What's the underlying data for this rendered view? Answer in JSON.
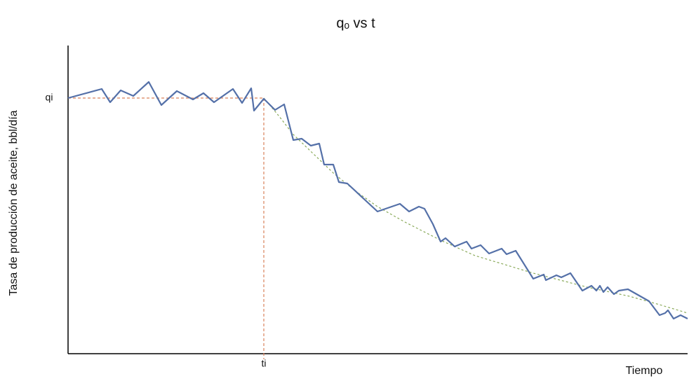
{
  "chart_data": {
    "type": "line",
    "title": "qₒ vs t",
    "x_label": "Tiempo",
    "y_label": "Tasa de producción de aceite, bbl/día",
    "xlim": [
      0,
      883
    ],
    "ylim": [
      0,
      440
    ],
    "xticks": [
      {
        "value": 279,
        "label": "ti"
      }
    ],
    "yticks": [
      {
        "value": 365,
        "label": "qi"
      }
    ],
    "series": [
      {
        "color": "#5470a8",
        "style": "solid",
        "x": [
          0,
          48,
          60,
          75,
          93,
          115,
          133,
          155,
          178,
          193,
          208,
          235,
          248,
          261,
          265,
          279,
          295,
          308,
          321,
          333,
          346,
          358,
          365,
          378,
          386,
          398,
          441,
          473,
          486,
          500,
          508,
          520,
          531,
          538,
          551,
          568,
          575,
          588,
          600,
          618,
          625,
          638,
          663,
          678,
          681,
          696,
          703,
          716,
          733,
          746,
          753,
          758,
          763,
          769,
          778,
          785,
          798,
          828,
          843,
          851,
          855,
          863,
          873,
          883
        ],
        "values": [
          365,
          378,
          359,
          376,
          368,
          388,
          355,
          375,
          363,
          372,
          359,
          378,
          358,
          379,
          347,
          364,
          348,
          356,
          305,
          307,
          297,
          300,
          270,
          270,
          245,
          243,
          203,
          214,
          203,
          210,
          207,
          185,
          160,
          165,
          153,
          160,
          150,
          155,
          143,
          150,
          142,
          147,
          107,
          113,
          105,
          112,
          109,
          115,
          90,
          97,
          90,
          97,
          88,
          95,
          85,
          90,
          92,
          75,
          55,
          58,
          62,
          50,
          55,
          50
        ]
      },
      {
        "color": "#8aaa5a",
        "style": "dashed",
        "x": [
          279,
          300,
          321,
          350,
          378,
          410,
          441,
          480,
          531,
          580,
          663,
          740,
          800,
          843,
          883
        ],
        "values": [
          365,
          340,
          313,
          285,
          258,
          232,
          210,
          188,
          162,
          140,
          115,
          95,
          82,
          70,
          58
        ]
      }
    ]
  }
}
